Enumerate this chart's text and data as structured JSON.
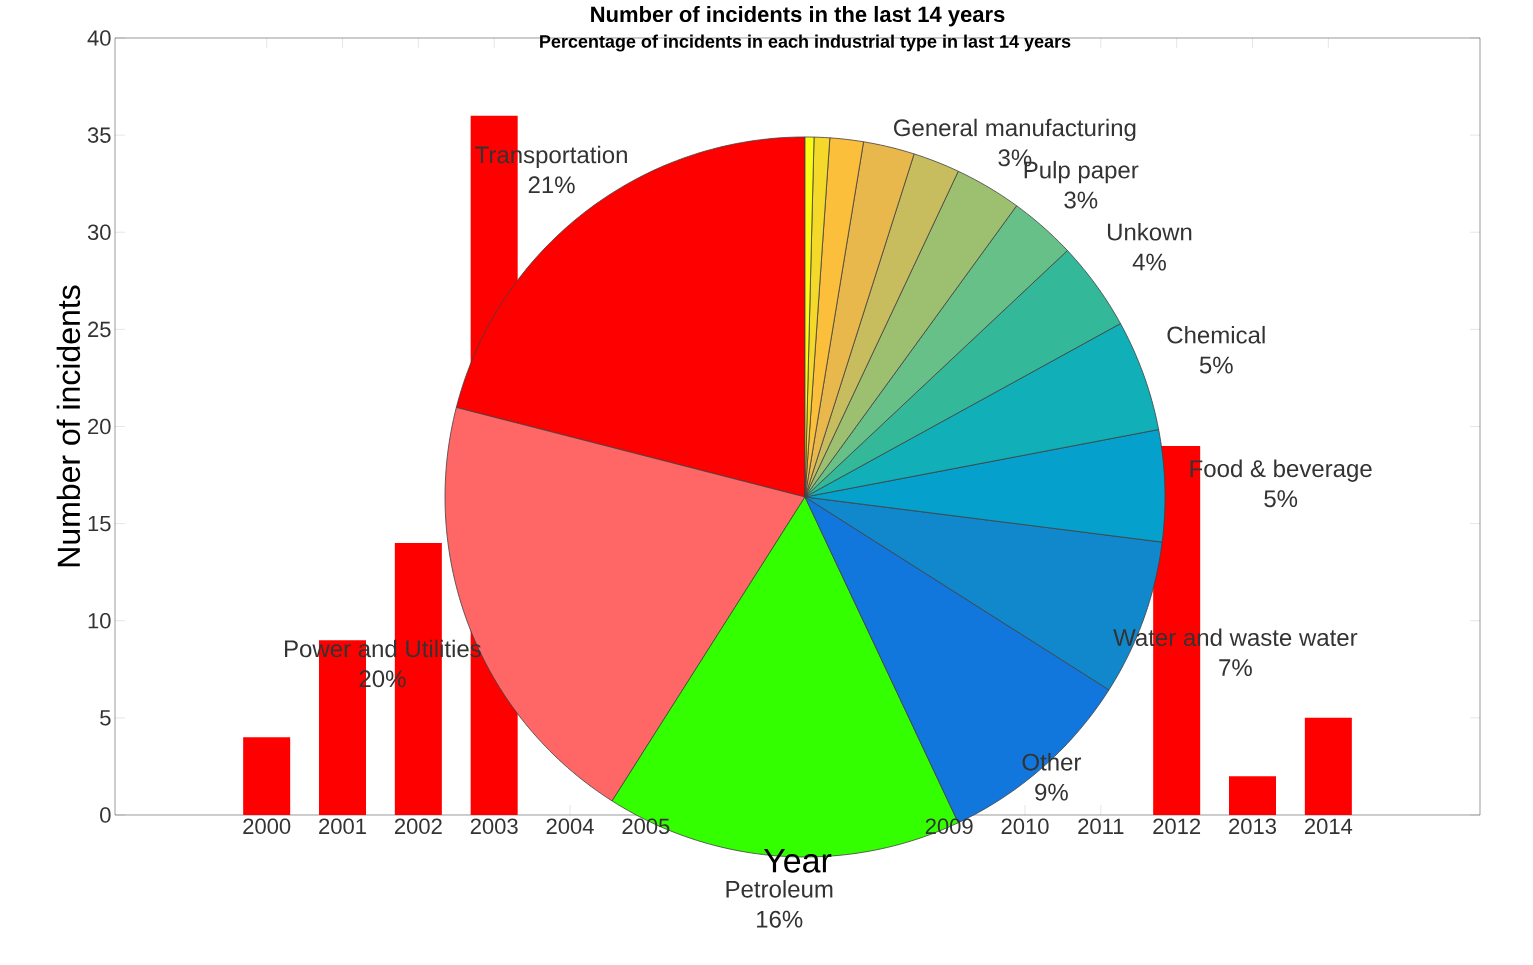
{
  "chart_data": [
    {
      "type": "bar",
      "title": "Number of incidents in the last 14 years",
      "xlabel": "Year",
      "ylabel": "Number of incidents",
      "categories": [
        "2000",
        "2001",
        "2002",
        "2003",
        "2004",
        "2005",
        null,
        null,
        null,
        "2009",
        "2010",
        "2011",
        "2012",
        "2013",
        "2014"
      ],
      "values": [
        4,
        9,
        14,
        36,
        null,
        null,
        null,
        null,
        null,
        null,
        null,
        null,
        19,
        2,
        5
      ],
      "color": "#ff0000",
      "ylim": [
        0,
        40
      ],
      "yticks": [
        0,
        5,
        10,
        15,
        20,
        25,
        30,
        35,
        40
      ]
    },
    {
      "type": "pie",
      "title": "Percentage of incidents in each industrial type in last 14 years",
      "categories": [
        "Transportation",
        "Power and Utilities",
        "Petroleum",
        "Other",
        "Water and waste water",
        "Food & beverage",
        "Chemical",
        "Unkown",
        "Pulp paper",
        "General manufacturing",
        null,
        null,
        null,
        null,
        null
      ],
      "values": [
        21,
        20,
        16,
        9,
        7,
        5,
        5,
        4,
        3,
        3,
        2.1,
        2.3,
        1.5,
        0.7,
        0.4
      ],
      "value_labels": [
        "21%",
        "20%",
        "16%",
        "9%",
        "7%",
        "5%",
        "5%",
        "4%",
        "3%",
        "3%",
        null,
        null,
        null,
        null,
        null
      ],
      "colors": [
        "#ff0000",
        "#ff6666",
        "#33ff00",
        "#1177dd",
        "#1188cc",
        "#05a0cc",
        "#11b0b8",
        "#33b89a",
        "#66c088",
        "#9cc070",
        "#c8bd5e",
        "#e9b84c",
        "#fbbf3b",
        "#f4d92a",
        "#f9fb14"
      ]
    }
  ]
}
